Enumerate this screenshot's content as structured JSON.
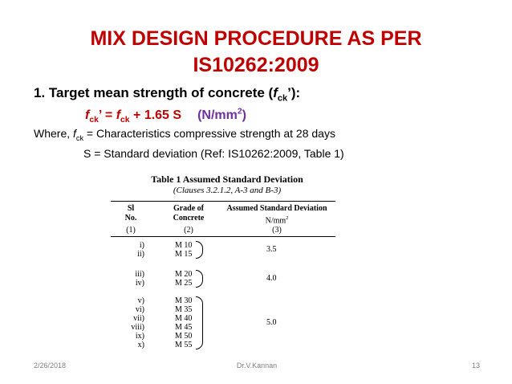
{
  "title": {
    "line1": "MIX DESIGN PROCEDURE AS PER",
    "line2": "IS10262:2009"
  },
  "heading": {
    "prefix": "1. Target mean strength of concrete (",
    "symbol": "f",
    "sub": "ck",
    "suffix": "’):"
  },
  "formula": {
    "lhs_f": "f",
    "lhs_sub": "ck",
    "lhs_prime": "’ = ",
    "rhs_f": "f",
    "rhs_sub": "ck",
    "rhs_rest": " + 1.65 S",
    "unit_open": "(N/mm",
    "unit_sup": "2",
    "unit_close": ")"
  },
  "where": {
    "prefix": "Where,  ",
    "f": "f",
    "sub": "ck",
    "text": " = Characteristics compressive strength at 28 days"
  },
  "sd_line": "S = Standard deviation (Ref: IS10262:2009, Table 1)",
  "table": {
    "title": "Table 1 Assumed Standard Deviation",
    "clauses": "(Clauses 3.2.1.2, A-3 and B-3)",
    "headers": {
      "sl_1": "Sl",
      "sl_2": "No.",
      "grade_1": "Grade of",
      "grade_2": "Concrete",
      "asd_1": "Assumed Standard Deviation",
      "asd_unit": "N/mm",
      "asd_unit_sup": "2"
    },
    "col_numbers": [
      "(1)",
      "(2)",
      "(3)"
    ],
    "sl_numbers": [
      "i)",
      "ii)",
      "iii)",
      "iv)",
      "v)",
      "vi)",
      "vii)",
      "viii)",
      "ix)",
      "x)"
    ],
    "grades": [
      "M 10",
      "M 15",
      "M 20",
      "M 25",
      "M 30",
      "M 35",
      "M 40",
      "M 45",
      "M 50",
      "M 55"
    ],
    "deviations": [
      "3.5",
      "4.0",
      "5.0"
    ]
  },
  "footer": {
    "date": "2/26/2018",
    "author": "Dr.V.Kannan",
    "page": "13"
  },
  "colors": {
    "title": "#c00000",
    "unit": "#7030a0",
    "footer": "#808080"
  }
}
